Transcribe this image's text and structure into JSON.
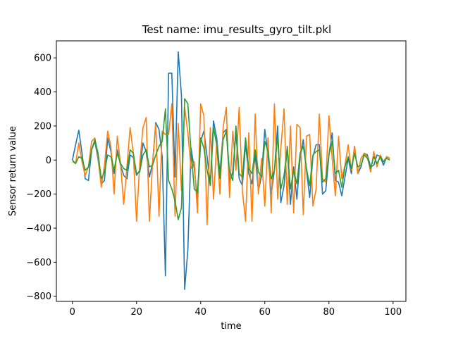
{
  "chart_data": {
    "type": "line",
    "title": "Test name: imu_results_gyro_tilt.pkl",
    "xlabel": "time",
    "ylabel": "Sensor return value",
    "xlim": [
      -5,
      104
    ],
    "ylim": [
      -830,
      700
    ],
    "xticks": [
      0,
      20,
      40,
      60,
      80,
      100
    ],
    "yticks": [
      -800,
      -600,
      -400,
      -200,
      0,
      200,
      400,
      600
    ],
    "grid": false,
    "legend": "none",
    "series": [
      {
        "color": "#1f77b4",
        "x": [
          0,
          1,
          2,
          3,
          4,
          5,
          6,
          7,
          8,
          9,
          10,
          11,
          12,
          13,
          14,
          15,
          16,
          17,
          18,
          19,
          20,
          21,
          22,
          23,
          24,
          25,
          26,
          27,
          28,
          29,
          30,
          31,
          32,
          33,
          34,
          35,
          36,
          37,
          38,
          39,
          40,
          41,
          42,
          43,
          44,
          45,
          46,
          47,
          48,
          49,
          50,
          51,
          52,
          53,
          54,
          55,
          56,
          57,
          58,
          59,
          60,
          61,
          62,
          63,
          64,
          65,
          66,
          67,
          68,
          69,
          70,
          71,
          72,
          73,
          74,
          75,
          76,
          77,
          78,
          79,
          80,
          81,
          82,
          83,
          84,
          85,
          86,
          87,
          88,
          89,
          90,
          91,
          92,
          93,
          94,
          95,
          96,
          97,
          98,
          99
        ],
        "y": [
          0,
          90,
          175,
          40,
          -110,
          -120,
          60,
          110,
          5,
          -140,
          -120,
          130,
          50,
          -80,
          60,
          -30,
          -90,
          -110,
          30,
          15,
          -90,
          -60,
          100,
          50,
          -100,
          -20,
          220,
          180,
          20,
          -680,
          510,
          510,
          -100,
          635,
          380,
          -760,
          -530,
          70,
          -50,
          -230,
          110,
          170,
          20,
          -140,
          230,
          130,
          -80,
          160,
          180,
          -130,
          -70,
          160,
          -110,
          -150,
          90,
          -80,
          -140,
          30,
          -180,
          -90,
          180,
          30,
          -200,
          -60,
          200,
          -250,
          -150,
          80,
          -260,
          -40,
          -230,
          10,
          120,
          -60,
          -220,
          20,
          90,
          90,
          -200,
          -180,
          30,
          160,
          -120,
          -130,
          -210,
          -100,
          10,
          -80,
          80,
          -80,
          -40,
          40,
          30,
          -40,
          -30,
          30,
          20,
          -30,
          20,
          10
        ]
      },
      {
        "color": "#ff7f0e",
        "x": [
          0,
          1,
          2,
          3,
          4,
          5,
          6,
          7,
          8,
          9,
          10,
          11,
          12,
          13,
          14,
          15,
          16,
          17,
          18,
          19,
          20,
          21,
          22,
          23,
          24,
          25,
          26,
          27,
          28,
          29,
          30,
          31,
          32,
          33,
          34,
          35,
          36,
          37,
          38,
          39,
          40,
          41,
          42,
          43,
          44,
          45,
          46,
          47,
          48,
          49,
          50,
          51,
          52,
          53,
          54,
          55,
          56,
          57,
          58,
          59,
          60,
          61,
          62,
          63,
          64,
          65,
          66,
          67,
          68,
          69,
          70,
          71,
          72,
          73,
          74,
          75,
          76,
          77,
          78,
          79,
          80,
          81,
          82,
          83,
          84,
          85,
          86,
          87,
          88,
          89,
          90,
          91,
          92,
          93,
          94,
          95,
          96,
          97,
          98,
          99
        ],
        "y": [
          -10,
          -20,
          100,
          -10,
          -90,
          -40,
          110,
          130,
          20,
          -160,
          -30,
          170,
          80,
          -200,
          140,
          -20,
          -260,
          -40,
          190,
          40,
          -360,
          -20,
          190,
          250,
          -360,
          -20,
          210,
          -330,
          170,
          150,
          150,
          330,
          -330,
          215,
          -180,
          310,
          160,
          -50,
          -10,
          -310,
          330,
          260,
          -380,
          190,
          -230,
          100,
          -200,
          190,
          310,
          -220,
          170,
          -60,
          310,
          -180,
          -360,
          160,
          -360,
          270,
          -200,
          10,
          -270,
          130,
          -310,
          330,
          -230,
          70,
          300,
          -260,
          200,
          -310,
          210,
          190,
          -320,
          140,
          150,
          -270,
          -170,
          270,
          -110,
          -130,
          260,
          10,
          -210,
          140,
          -110,
          -30,
          90,
          -60,
          80,
          -80,
          10,
          40,
          20,
          -70,
          50,
          -40,
          30,
          -10,
          20,
          10
        ]
      },
      {
        "color": "#2ca02c",
        "x": [
          0,
          1,
          2,
          3,
          4,
          5,
          6,
          7,
          8,
          9,
          10,
          11,
          12,
          13,
          14,
          15,
          16,
          17,
          18,
          19,
          20,
          21,
          22,
          23,
          24,
          25,
          26,
          27,
          28,
          29,
          30,
          31,
          32,
          33,
          34,
          35,
          36,
          37,
          38,
          39,
          40,
          41,
          42,
          43,
          44,
          45,
          46,
          47,
          48,
          49,
          50,
          51,
          52,
          53,
          54,
          55,
          56,
          57,
          58,
          59,
          60,
          61,
          62,
          63,
          64,
          65,
          66,
          67,
          68,
          69,
          70,
          71,
          72,
          73,
          74,
          75,
          76,
          77,
          78,
          79,
          80,
          81,
          82,
          83,
          84,
          85,
          86,
          87,
          88,
          89,
          90,
          91,
          92,
          93,
          94,
          95,
          96,
          97,
          98,
          99
        ],
        "y": [
          0,
          -20,
          20,
          10,
          -60,
          -40,
          60,
          120,
          40,
          -110,
          -70,
          30,
          20,
          -60,
          40,
          -20,
          -50,
          -60,
          60,
          40,
          -80,
          -70,
          30,
          60,
          -40,
          -30,
          30,
          80,
          110,
          300,
          -120,
          -170,
          -240,
          -350,
          -280,
          360,
          330,
          50,
          -170,
          -190,
          130,
          70,
          -60,
          -150,
          190,
          90,
          -110,
          120,
          170,
          -70,
          -120,
          200,
          -80,
          -100,
          130,
          -50,
          -80,
          60,
          -70,
          -100,
          110,
          50,
          -110,
          -60,
          140,
          -170,
          -90,
          70,
          -170,
          -60,
          -140,
          40,
          80,
          -50,
          -150,
          30,
          50,
          60,
          -130,
          -110,
          30,
          110,
          -80,
          -60,
          -160,
          -40,
          20,
          -50,
          40,
          -40,
          -30,
          30,
          10,
          -50,
          20,
          -20,
          20,
          -10,
          10,
          0
        ]
      }
    ]
  }
}
